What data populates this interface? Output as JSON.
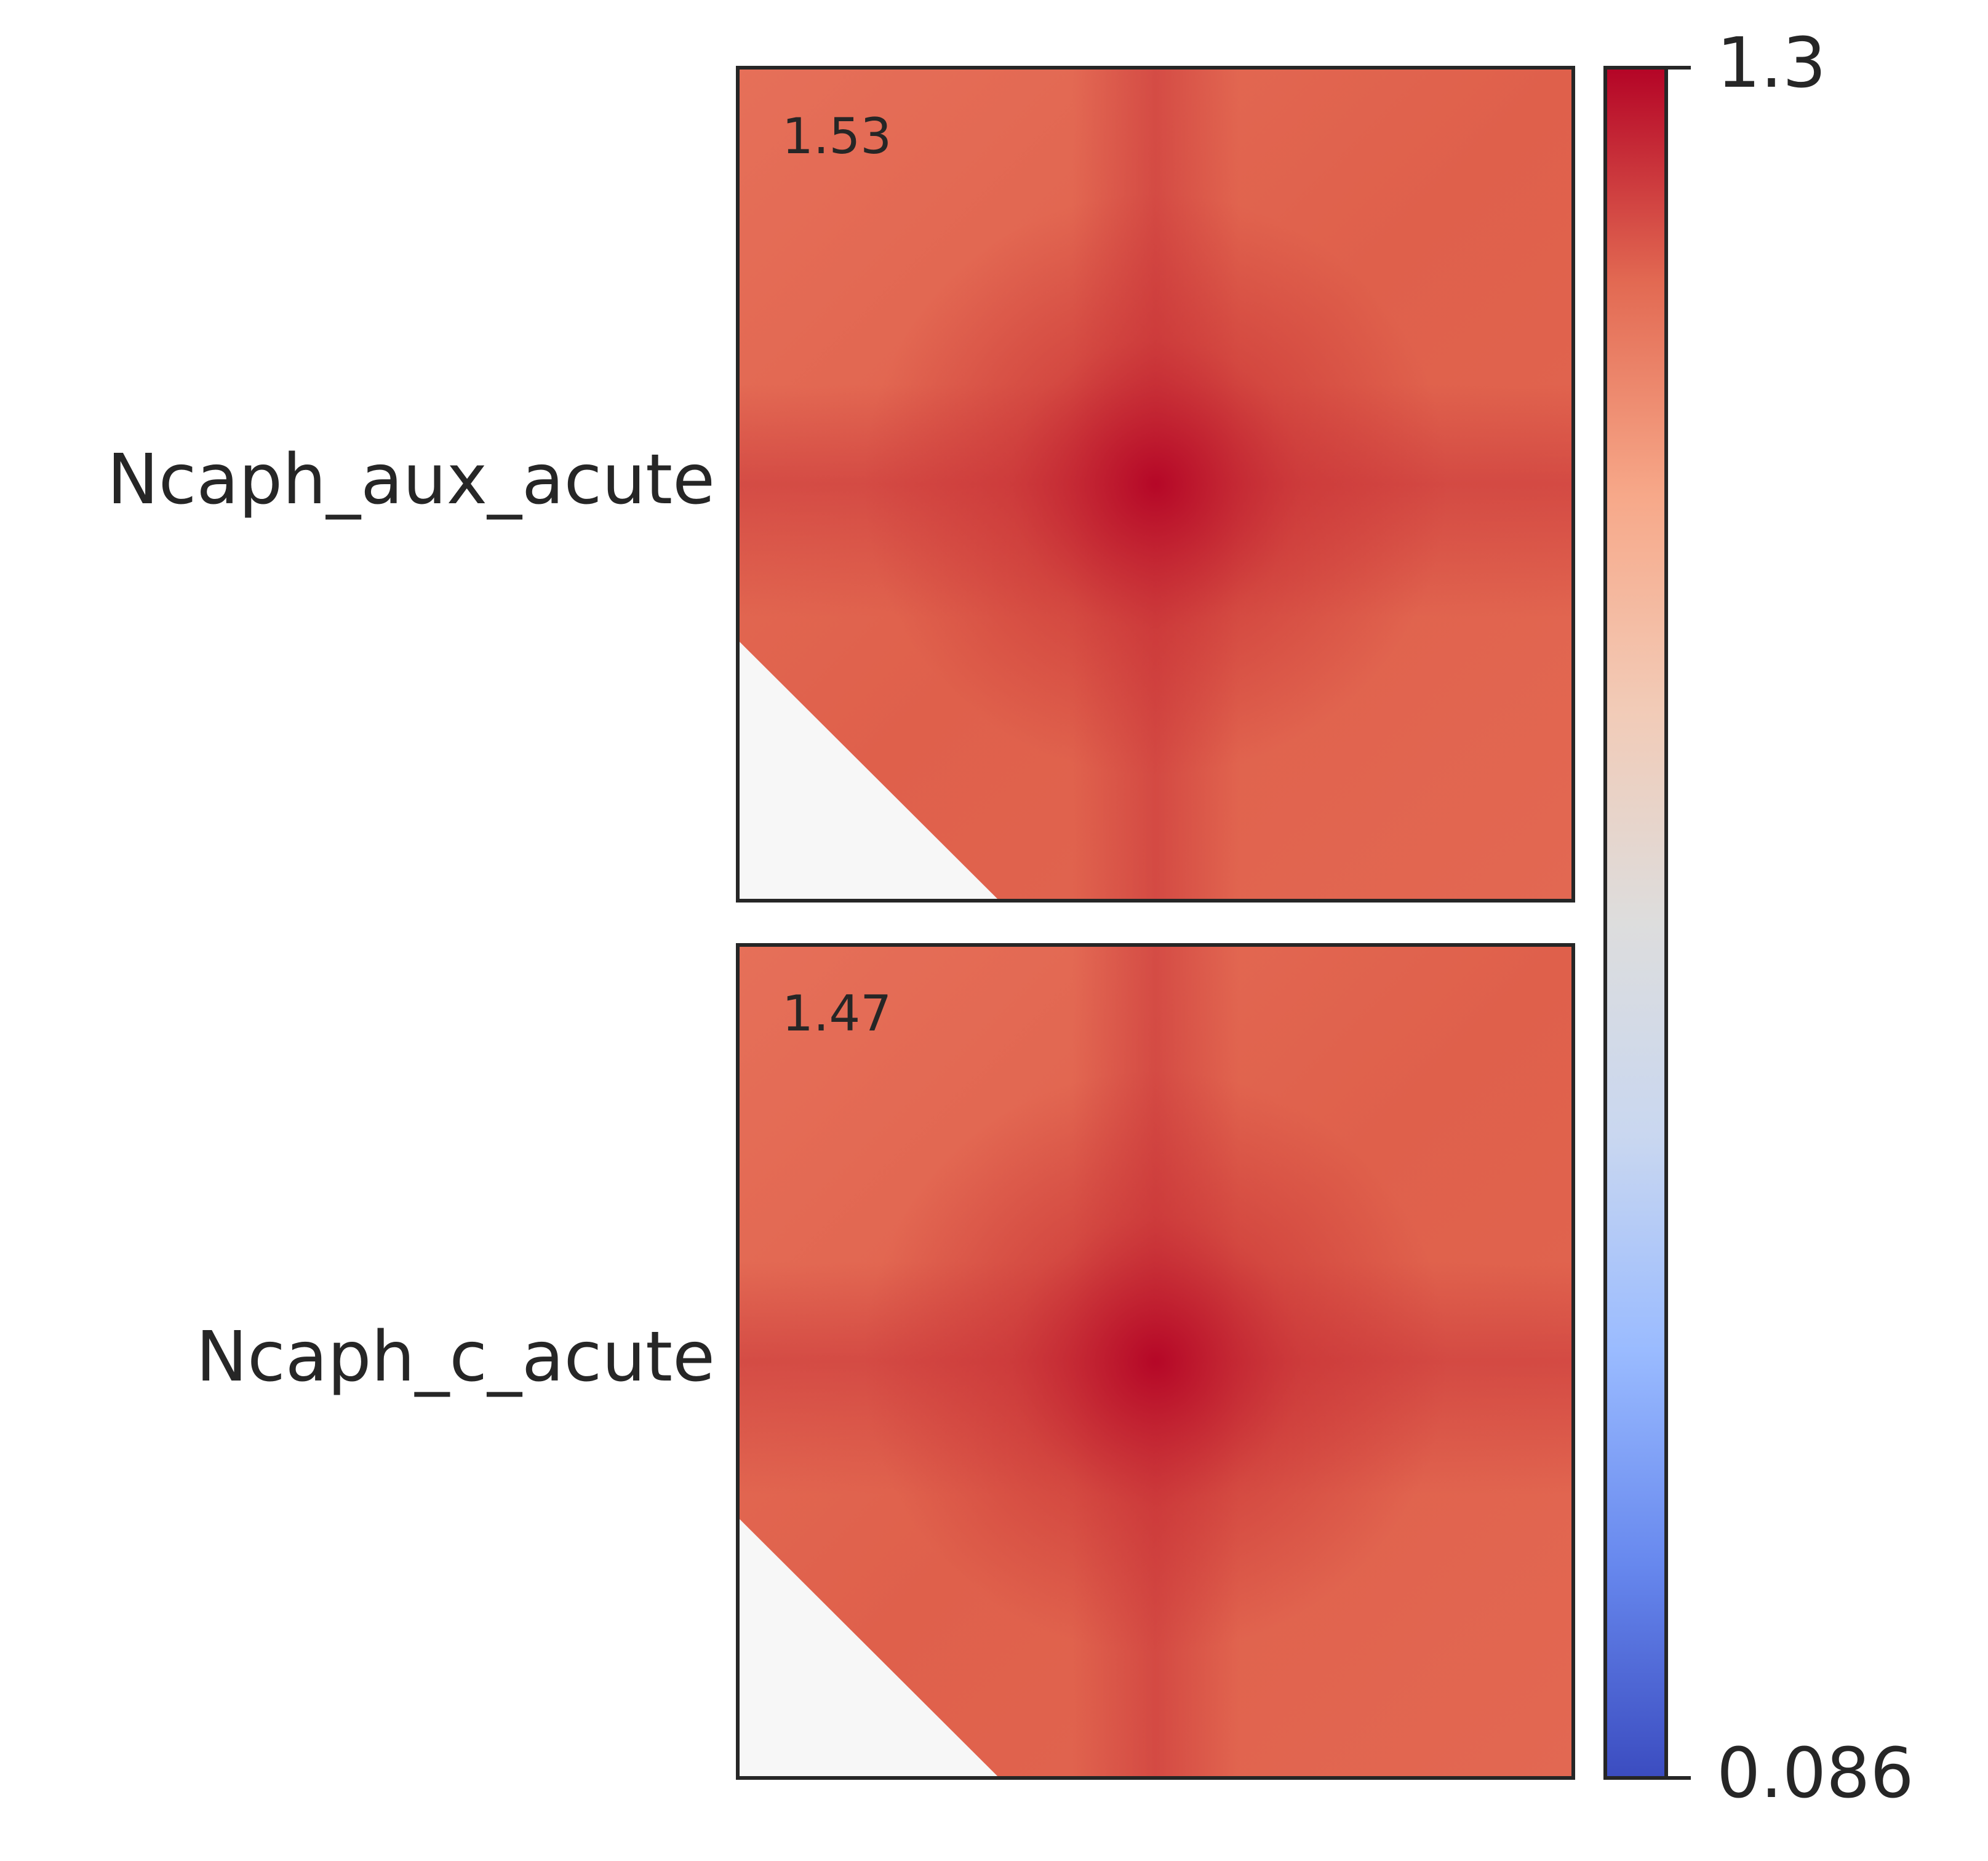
{
  "chart_data": {
    "type": "heatmap",
    "panels": [
      {
        "label": "Ncaph_aux_acute",
        "annotation": 1.53
      },
      {
        "label": "Ncaph_c_acute",
        "annotation": 1.47
      }
    ],
    "colorbar": {
      "clim": [
        0.086,
        1.3
      ],
      "ticks": [
        0.086,
        1.3
      ],
      "colors": [
        "#3b4cc0",
        "#6788ee",
        "#9abbff",
        "#c9d7f0",
        "#dddddd",
        "#f2cbb7",
        "#f7a889",
        "#e26952",
        "#b40426"
      ]
    }
  }
}
